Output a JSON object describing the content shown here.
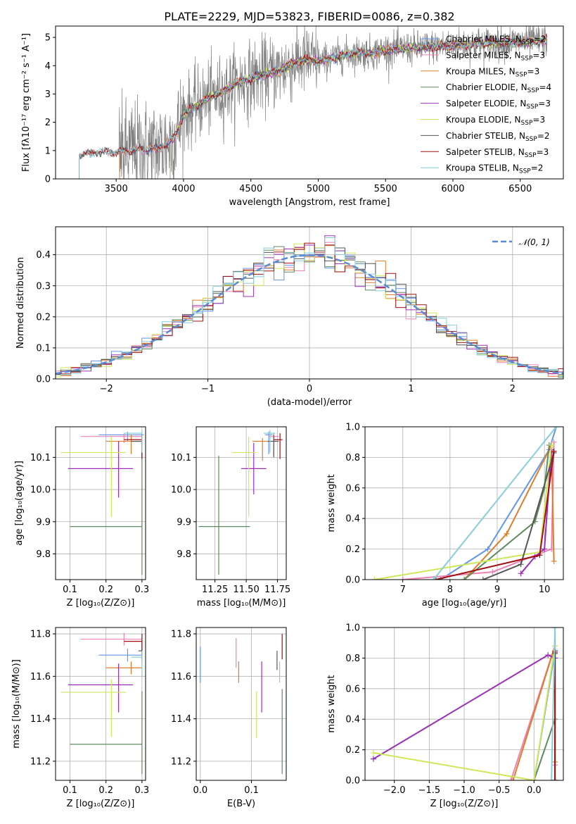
{
  "figure": {
    "title": "PLATE=2229, MJD=53823, FIBERID=0086, z=0.382"
  },
  "colors": {
    "Chabrier MILES": "#6495ed",
    "Salpeter MILES": "#ee82b4",
    "Kroupa MILES": "#e07b2a",
    "Chabrier ELODIE": "#5e8c5e",
    "Salpeter ELODIE": "#9b30b8",
    "Kroupa ELODIE": "#cde85a",
    "Chabrier STELIB": "#555555",
    "Salpeter STELIB": "#a01010",
    "Kroupa STELIB": "#87cedc"
  },
  "chart_data": [
    {
      "id": "spectrum",
      "type": "line",
      "xlabel": "wavelength [Angstrom, rest frame]",
      "ylabel": "Flux [fλ10⁻¹⁷ erg cm⁻² s⁻¹ A⁻¹]",
      "xlim": [
        3050,
        6820
      ],
      "ylim": [
        0,
        5.4
      ],
      "xticks": [
        3500,
        4000,
        4500,
        5000,
        5500,
        6000,
        6500
      ],
      "yticks": [
        0,
        1,
        2,
        3,
        4,
        5
      ],
      "grid": false,
      "legend_position": "top-right",
      "data_start": 3225,
      "data_end": 6700,
      "model_profile": {
        "x": [
          3225,
          3300,
          3400,
          3500,
          3600,
          3700,
          3800,
          3900,
          3950,
          4000,
          4100,
          4200,
          4300,
          4400,
          4500,
          4600,
          4700,
          4800,
          4900,
          5000,
          5100,
          5200,
          5300,
          5400,
          5500,
          5600,
          5700,
          5800,
          5900,
          6000,
          6100,
          6200,
          6300,
          6400,
          6500,
          6600,
          6700
        ],
        "y": [
          0.82,
          0.9,
          0.95,
          0.92,
          1.0,
          1.05,
          1.05,
          1.3,
          1.6,
          2.3,
          2.6,
          2.9,
          3.1,
          3.4,
          3.55,
          3.7,
          3.8,
          4.05,
          4.2,
          4.15,
          4.25,
          4.4,
          4.45,
          4.45,
          4.55,
          4.6,
          4.62,
          4.65,
          4.68,
          4.72,
          4.74,
          4.78,
          4.8,
          4.82,
          4.84,
          4.86,
          4.88
        ]
      },
      "series": [
        {
          "name": "Chabrier MILES, N_SSP=2",
          "start": 3525
        },
        {
          "name": "Salpeter MILES, N_SSP=3",
          "start": 3525
        },
        {
          "name": "Kroupa MILES, N_SSP=3",
          "start": 3525
        },
        {
          "name": "Chabrier ELODIE, N_SSP=4",
          "start": 3900
        },
        {
          "name": "Salpeter ELODIE, N_SSP=3",
          "start": 3900
        },
        {
          "name": "Kroupa ELODIE, N_SSP=3",
          "start": 3900
        },
        {
          "name": "Chabrier STELIB, N_SSP=2",
          "start": 3225
        },
        {
          "name": "Salpeter STELIB, N_SSP=3",
          "start": 3225
        },
        {
          "name": "Kroupa STELIB, N_SSP=2",
          "start": 3225
        }
      ]
    },
    {
      "id": "residuals",
      "type": "area",
      "xlabel": "(data-model)/error",
      "ylabel": "Normed distribution",
      "xlim": [
        -2.5,
        2.5
      ],
      "ylim": [
        0,
        0.49
      ],
      "xticks": [
        -2,
        -1,
        0,
        1,
        2
      ],
      "yticks": [
        0.0,
        0.1,
        0.2,
        0.3,
        0.4
      ],
      "grid": true,
      "bin_width": 0.1,
      "reference_curve": {
        "name": "𝒩(0, 1)",
        "mean": 0,
        "sigma": 1
      },
      "legend_position": "top-right"
    },
    {
      "id": "age-vs-Z",
      "type": "scatter",
      "xlabel": "Z [log₁₀(Z/Z⊙)]",
      "ylabel": "age  [log₁₀(age/yr)]",
      "xlim": [
        0.06,
        0.31
      ],
      "ylim": [
        9.72,
        10.195
      ],
      "xticks": [
        0.1,
        0.2,
        0.3
      ],
      "yticks": [
        9.8,
        9.9,
        10.0,
        10.1
      ],
      "grid": true,
      "points": [
        {
          "model": "Chabrier MILES",
          "x": 0.26,
          "y": 10.17,
          "xerr": [
            0.08,
            0.045
          ],
          "yerr": [
            0.02,
            0.01
          ]
        },
        {
          "model": "Salpeter MILES",
          "x": 0.25,
          "y": 10.165,
          "xerr": [
            0.12,
            0.05
          ],
          "yerr": [
            0.02,
            0.01
          ]
        },
        {
          "model": "Kroupa MILES",
          "x": 0.27,
          "y": 10.15,
          "xerr": [
            0.07,
            0.03
          ],
          "yerr": [
            0.04,
            0.02
          ]
        },
        {
          "model": "Chabrier ELODIE",
          "x": 0.3,
          "y": 9.885,
          "xerr": [
            0.2,
            0.0
          ],
          "yerr": [
            0.15,
            0.23
          ]
        },
        {
          "model": "Salpeter ELODIE",
          "x": 0.235,
          "y": 10.065,
          "xerr": [
            0.14,
            0.04
          ],
          "yerr": [
            0.09,
            0.085
          ]
        },
        {
          "model": "Kroupa ELODIE",
          "x": 0.215,
          "y": 10.115,
          "xerr": [
            0.14,
            0.04
          ],
          "yerr": [
            0.2,
            0.05
          ]
        },
        {
          "model": "Chabrier STELIB",
          "x": 0.3,
          "y": 10.15,
          "xerr": [
            0.03,
            0.0
          ],
          "yerr": [
            0.05,
            0.02
          ]
        },
        {
          "model": "Salpeter STELIB",
          "x": 0.3,
          "y": 10.155,
          "xerr": [
            0.05,
            0.0
          ],
          "yerr": [
            0.06,
            0.02
          ]
        },
        {
          "model": "Kroupa STELIB",
          "x": 0.3,
          "y": 10.175,
          "xerr": [
            0.05,
            0.0
          ],
          "yerr": [
            0.06,
            0.01
          ]
        }
      ]
    },
    {
      "id": "age-vs-mass",
      "type": "scatter",
      "xlabel": "mass [log₁₀(M/M⊙)]",
      "ylabel": "",
      "xlim": [
        11.1,
        11.82
      ],
      "ylim": [
        9.72,
        10.195
      ],
      "xticks": [
        11.25,
        11.5,
        11.75
      ],
      "yticks": [
        9.8,
        9.9,
        10.0,
        10.1
      ],
      "grid": true,
      "points": [
        {
          "model": "Chabrier MILES",
          "x": 11.68,
          "y": 10.17,
          "xerr": [
            0.03,
            0.03
          ],
          "yerr": [
            0.06,
            0.01
          ]
        },
        {
          "model": "Salpeter MILES",
          "x": 11.72,
          "y": 10.165,
          "xerr": [
            0.04,
            0.04
          ],
          "yerr": [
            0.06,
            0.01
          ]
        },
        {
          "model": "Kroupa MILES",
          "x": 11.63,
          "y": 10.15,
          "xerr": [
            0.08,
            0.04
          ],
          "yerr": [
            0.06,
            0.01
          ]
        },
        {
          "model": "Chabrier ELODIE",
          "x": 11.28,
          "y": 9.885,
          "xerr": [
            0.16,
            0.25
          ],
          "yerr": [
            0.15,
            0.22
          ]
        },
        {
          "model": "Salpeter ELODIE",
          "x": 11.56,
          "y": 10.065,
          "xerr": [
            0.1,
            0.1
          ],
          "yerr": [
            0.08,
            0.08
          ]
        },
        {
          "model": "Kroupa ELODIE",
          "x": 11.52,
          "y": 10.115,
          "xerr": [
            0.13,
            0.06
          ],
          "yerr": [
            0.2,
            0.05
          ]
        },
        {
          "model": "Chabrier STELIB",
          "x": 11.72,
          "y": 10.15,
          "xerr": [
            0.05,
            0.04
          ],
          "yerr": [
            0.05,
            0.02
          ]
        },
        {
          "model": "Salpeter STELIB",
          "x": 11.77,
          "y": 10.155,
          "xerr": [
            0.05,
            0.02
          ],
          "yerr": [
            0.06,
            0.02
          ]
        },
        {
          "model": "Kroupa STELIB",
          "x": 11.69,
          "y": 10.175,
          "xerr": [
            0.05,
            0.04
          ],
          "yerr": [
            0.06,
            0.01
          ]
        }
      ]
    },
    {
      "id": "mass-weight-vs-age",
      "type": "line",
      "xlabel": "age  [log₁₀(age/yr)]",
      "ylabel": "mass weight",
      "xlim": [
        6.2,
        10.4
      ],
      "ylim": [
        0,
        1
      ],
      "xticks": [
        7,
        8,
        9,
        10
      ],
      "yticks": [
        0.0,
        0.2,
        0.4,
        0.6,
        0.8,
        1.0
      ],
      "grid": true,
      "series": [
        {
          "model": "Chabrier MILES",
          "x": [
            7.8,
            8.8,
            10.1,
            10.25
          ],
          "y": [
            0.0,
            0.2,
            0.85,
            1.0
          ]
        },
        {
          "model": "Salpeter MILES",
          "x": [
            7.0,
            8.9,
            10.15,
            10.2
          ],
          "y": [
            0.0,
            0.05,
            0.2,
            0.9
          ]
        },
        {
          "model": "Kroupa MILES",
          "x": [
            8.3,
            9.2,
            10.15,
            10.2
          ],
          "y": [
            0.0,
            0.3,
            0.88,
            0.12
          ]
        },
        {
          "model": "Chabrier ELODIE",
          "x": [
            8.3,
            9.8,
            10.0,
            10.1
          ],
          "y": [
            0.0,
            0.38,
            0.6,
            0.88
          ]
        },
        {
          "model": "Salpeter ELODIE",
          "x": [
            9.5,
            9.8,
            10.0,
            10.15
          ],
          "y": [
            0.04,
            0.15,
            0.2,
            0.85
          ]
        },
        {
          "model": "Kroupa ELODIE",
          "x": [
            6.4,
            9.9,
            10.15
          ],
          "y": [
            0.0,
            0.18,
            0.88
          ]
        },
        {
          "model": "Chabrier STELIB",
          "x": [
            8.7,
            9.5,
            10.2
          ],
          "y": [
            0.0,
            0.1,
            0.83
          ]
        },
        {
          "model": "Salpeter STELIB",
          "x": [
            7.7,
            9.9,
            10.2
          ],
          "y": [
            0.0,
            0.16,
            0.84
          ]
        },
        {
          "model": "Kroupa STELIB",
          "x": [
            7.65,
            10.25
          ],
          "y": [
            0.0,
            1.0
          ]
        }
      ]
    },
    {
      "id": "mass-vs-Z",
      "type": "scatter",
      "xlabel": "Z [log₁₀(Z/Z⊙)]",
      "ylabel": "mass [log₁₀(M/M⊙)]",
      "xlim": [
        0.06,
        0.31
      ],
      "ylim": [
        11.11,
        11.83
      ],
      "xticks": [
        0.1,
        0.2,
        0.3
      ],
      "yticks": [
        11.2,
        11.4,
        11.6,
        11.8
      ],
      "grid": true,
      "points": [
        {
          "model": "Chabrier MILES",
          "x": 0.26,
          "y": 11.7,
          "xerr": [
            0.08,
            0.04
          ],
          "yerr": [
            0.03,
            0.03
          ]
        },
        {
          "model": "Salpeter MILES",
          "x": 0.25,
          "y": 11.775,
          "xerr": [
            0.12,
            0.05
          ],
          "yerr": [
            0.03,
            0.03
          ]
        },
        {
          "model": "Kroupa MILES",
          "x": 0.27,
          "y": 11.64,
          "xerr": [
            0.07,
            0.03
          ],
          "yerr": [
            0.03,
            0.03
          ]
        },
        {
          "model": "Chabrier ELODIE",
          "x": 0.3,
          "y": 11.28,
          "xerr": [
            0.2,
            0.0
          ],
          "yerr": [
            0.14,
            0.25
          ]
        },
        {
          "model": "Salpeter ELODIE",
          "x": 0.235,
          "y": 11.56,
          "xerr": [
            0.14,
            0.04
          ],
          "yerr": [
            0.13,
            0.1
          ]
        },
        {
          "model": "Kroupa ELODIE",
          "x": 0.215,
          "y": 11.525,
          "xerr": [
            0.14,
            0.04
          ],
          "yerr": [
            0.21,
            0.06
          ]
        },
        {
          "model": "Chabrier STELIB",
          "x": 0.3,
          "y": 11.72,
          "xerr": [
            0.01,
            0.0
          ],
          "yerr": [
            0.05,
            0.05
          ]
        },
        {
          "model": "Salpeter STELIB",
          "x": 0.3,
          "y": 11.765,
          "xerr": [
            0.05,
            0.0
          ],
          "yerr": [
            0.08,
            0.035
          ]
        },
        {
          "model": "Kroupa STELIB",
          "x": 0.3,
          "y": 11.69,
          "xerr": [
            0.03,
            0.0
          ],
          "yerr": [
            0.09,
            0.03
          ]
        }
      ]
    },
    {
      "id": "mass-vs-ebv",
      "type": "scatter",
      "xlabel": "E(B-V)",
      "ylabel": "",
      "xlim": [
        -0.008,
        0.168
      ],
      "ylim": [
        11.11,
        11.83
      ],
      "xticks": [
        0.0,
        0.1
      ],
      "yticks": [
        11.2,
        11.4,
        11.6,
        11.8
      ],
      "grid": true,
      "points": [
        {
          "model": "Chabrier MILES",
          "x": 0.0,
          "y": 11.65,
          "yerr": [
            0.08,
            0.09
          ]
        },
        {
          "model": "Salpeter MILES",
          "x": 0.07,
          "y": 11.7,
          "yerr": [
            0.06,
            0.08
          ]
        },
        {
          "model": "Kroupa MILES",
          "x": 0.075,
          "y": 11.62,
          "yerr": [
            0.05,
            0.05
          ]
        },
        {
          "model": "Chabrier ELODIE",
          "x": 0.16,
          "y": 11.34,
          "yerr": [
            0.2,
            0.2
          ]
        },
        {
          "model": "Salpeter ELODIE",
          "x": 0.12,
          "y": 11.55,
          "yerr": [
            0.12,
            0.12
          ]
        },
        {
          "model": "Kroupa ELODIE",
          "x": 0.11,
          "y": 11.42,
          "yerr": [
            0.11,
            0.11
          ]
        },
        {
          "model": "Chabrier STELIB",
          "x": 0.15,
          "y": 11.69,
          "yerr": [
            0.06,
            0.03
          ]
        },
        {
          "model": "Salpeter STELIB",
          "x": 0.16,
          "y": 11.74,
          "yerr": [
            0.06,
            0.06
          ]
        },
        {
          "model": "Kroupa STELIB",
          "x": 0.155,
          "y": 11.62,
          "yerr": [
            0.05,
            0.05
          ]
        }
      ]
    },
    {
      "id": "mass-weight-vs-Z",
      "type": "line",
      "xlabel": "Z [log₁₀(Z/Z⊙)]",
      "ylabel": "mass weight",
      "xlim": [
        -2.42,
        0.42
      ],
      "ylim": [
        0,
        1
      ],
      "xticks": [
        -2.0,
        -1.5,
        -1.0,
        -0.5,
        0.0
      ],
      "yticks": [
        0.0,
        0.2,
        0.4,
        0.6,
        0.8,
        1.0
      ],
      "grid": true,
      "series": [
        {
          "model": "Chabrier MILES",
          "x": [
            0.0,
            0.3,
            0.3
          ],
          "y": [
            0.0,
            0.85,
            1.0
          ]
        },
        {
          "model": "Salpeter MILES",
          "x": [
            -0.33,
            0.3,
            0.3
          ],
          "y": [
            0.0,
            0.88,
            0.1
          ]
        },
        {
          "model": "Kroupa MILES",
          "x": [
            -0.3,
            0.3,
            0.3
          ],
          "y": [
            0.0,
            0.88,
            0.12
          ]
        },
        {
          "model": "Chabrier ELODIE",
          "x": [
            0.0,
            0.3,
            0.3
          ],
          "y": [
            0.0,
            0.4,
            0.0
          ]
        },
        {
          "model": "Salpeter ELODIE",
          "x": [
            -2.3,
            0.2,
            0.3
          ],
          "y": [
            0.14,
            0.82,
            0.8
          ]
        },
        {
          "model": "Kroupa ELODIE",
          "x": [
            -2.3,
            0.0,
            0.3
          ],
          "y": [
            0.18,
            0.0,
            0.88
          ]
        },
        {
          "model": "Chabrier STELIB",
          "x": [
            0.3,
            0.3
          ],
          "y": [
            0.0,
            0.83
          ]
        },
        {
          "model": "Salpeter STELIB",
          "x": [
            0.3,
            0.3
          ],
          "y": [
            0.0,
            0.84
          ]
        },
        {
          "model": "Kroupa STELIB",
          "x": [
            0.25,
            0.3
          ],
          "y": [
            0.0,
            1.0
          ]
        }
      ]
    }
  ]
}
